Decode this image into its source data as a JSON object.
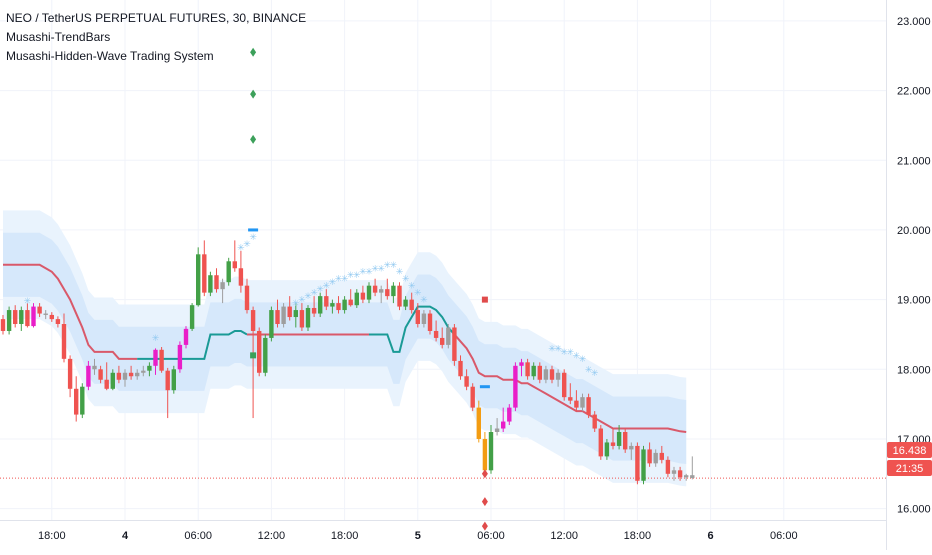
{
  "legend": {
    "title": "NEO / TetherUS PERPETUAL FUTURES, 30, BINANCE",
    "indicator_1": "Musashi-TrendBars",
    "indicator_2": "Musashi-Hidden-Wave Trading System"
  },
  "price_tags": {
    "last_price": "16.438",
    "countdown": "21:35"
  },
  "colors": {
    "bull_green": "#43a047",
    "bear_red": "#ef5350",
    "magenta": "#e91ec8",
    "orange": "#f39c12",
    "gray": "#9e9e9e",
    "baseline_red": "#d9596a",
    "baseline_teal": "#1a9a96",
    "band_outer": "#e9f3fd",
    "band_inner": "#d6e8fb",
    "star_blue": "#90c8f0",
    "diamond_green": "#3ca05a",
    "diamond_red": "#e04b4b",
    "marker_blue": "#2196f3",
    "tag_red": "#ef5350"
  },
  "chart_data": {
    "type": "candlestick",
    "symbol": "NEO / TetherUS PERPETUAL FUTURES",
    "interval": "30",
    "exchange": "BINANCE",
    "ylim": [
      15.55,
      23.3
    ],
    "y_ticks": [
      "23.000",
      "22.000",
      "21.000",
      "20.000",
      "19.000",
      "18.000",
      "17.000",
      "16.000"
    ],
    "y_tick_values": [
      23,
      22,
      21,
      20,
      19,
      18,
      17,
      16
    ],
    "x_ticks": [
      {
        "label": "18:00",
        "index": 8,
        "bold": false
      },
      {
        "label": "4",
        "index": 20,
        "bold": true
      },
      {
        "label": "06:00",
        "index": 32,
        "bold": false
      },
      {
        "label": "12:00",
        "index": 44,
        "bold": false
      },
      {
        "label": "18:00",
        "index": 56,
        "bold": false
      },
      {
        "label": "5",
        "index": 68,
        "bold": true
      },
      {
        "label": "06:00",
        "index": 80,
        "bold": false
      },
      {
        "label": "12:00",
        "index": 92,
        "bold": false
      },
      {
        "label": "18:00",
        "index": 104,
        "bold": false
      },
      {
        "label": "6",
        "index": 116,
        "bold": true
      },
      {
        "label": "06:00",
        "index": 128,
        "bold": false
      }
    ],
    "last_price": 16.438,
    "candles": [
      [
        18.72,
        18.78,
        18.5,
        18.55,
        "bear_red"
      ],
      [
        18.55,
        18.9,
        18.5,
        18.85,
        "bull_green"
      ],
      [
        18.85,
        18.92,
        18.6,
        18.65,
        "bear_red"
      ],
      [
        18.65,
        18.9,
        18.55,
        18.85,
        "bull_green"
      ],
      [
        18.85,
        18.95,
        18.6,
        18.62,
        "bear_red"
      ],
      [
        18.62,
        18.95,
        18.6,
        18.9,
        "magenta"
      ],
      [
        18.9,
        18.95,
        18.75,
        18.8,
        "bear_red"
      ],
      [
        18.8,
        18.85,
        18.72,
        18.78,
        "gray"
      ],
      [
        18.78,
        18.82,
        18.68,
        18.72,
        "bear_red"
      ],
      [
        18.72,
        18.76,
        18.6,
        18.65,
        "bear_red"
      ],
      [
        18.65,
        18.8,
        18.1,
        18.15,
        "bear_red"
      ],
      [
        18.15,
        18.2,
        17.6,
        17.72,
        "bear_red"
      ],
      [
        17.72,
        17.9,
        17.25,
        17.35,
        "bear_red"
      ],
      [
        17.35,
        17.8,
        17.3,
        17.75,
        "bull_green"
      ],
      [
        17.75,
        18.12,
        17.7,
        18.05,
        "magenta"
      ],
      [
        18.05,
        18.15,
        17.92,
        18.0,
        "gray"
      ],
      [
        18.0,
        18.05,
        17.8,
        17.85,
        "bear_red"
      ],
      [
        17.85,
        18.1,
        17.7,
        17.72,
        "bear_red"
      ],
      [
        17.72,
        18.0,
        17.7,
        17.95,
        "bull_green"
      ],
      [
        17.95,
        18.05,
        17.8,
        17.85,
        "bear_red"
      ],
      [
        17.85,
        18.0,
        17.75,
        17.95,
        "gray"
      ],
      [
        17.95,
        18.05,
        17.85,
        17.9,
        "bear_red"
      ],
      [
        17.9,
        18.0,
        17.85,
        17.95,
        "gray"
      ],
      [
        17.95,
        18.05,
        17.9,
        17.98,
        "gray"
      ],
      [
        17.98,
        18.1,
        17.9,
        18.05,
        "bull_green"
      ],
      [
        18.05,
        18.3,
        17.92,
        18.28,
        "magenta"
      ],
      [
        18.28,
        18.32,
        17.95,
        17.98,
        "bear_red"
      ],
      [
        17.98,
        18.02,
        17.3,
        17.7,
        "bear_red"
      ],
      [
        17.7,
        18.05,
        17.65,
        18.0,
        "bull_green"
      ],
      [
        18.0,
        18.4,
        17.95,
        18.35,
        "magenta"
      ],
      [
        18.35,
        18.62,
        18.3,
        18.58,
        "magenta"
      ],
      [
        18.58,
        18.95,
        18.55,
        18.92,
        "bull_green"
      ],
      [
        18.92,
        19.75,
        18.9,
        19.65,
        "bull_green"
      ],
      [
        19.65,
        19.85,
        19.05,
        19.1,
        "bear_red"
      ],
      [
        19.1,
        19.4,
        19.05,
        19.35,
        "bull_green"
      ],
      [
        19.35,
        19.45,
        19.1,
        19.15,
        "bear_red"
      ],
      [
        19.15,
        19.3,
        18.95,
        19.25,
        "gray"
      ],
      [
        19.25,
        19.6,
        19.2,
        19.55,
        "bull_green"
      ],
      [
        19.55,
        19.85,
        19.4,
        19.45,
        "bear_red"
      ],
      [
        19.45,
        19.7,
        19.1,
        19.2,
        "bear_red"
      ],
      [
        19.2,
        19.3,
        18.8,
        18.85,
        "bear_red"
      ],
      [
        18.85,
        18.9,
        17.3,
        18.55,
        "bear_red"
      ],
      [
        18.55,
        18.6,
        17.9,
        17.95,
        "bear_red"
      ],
      [
        17.95,
        18.5,
        17.9,
        18.45,
        "bull_green"
      ],
      [
        18.45,
        18.9,
        18.4,
        18.85,
        "bull_green"
      ],
      [
        18.85,
        19.0,
        18.6,
        18.65,
        "bear_red"
      ],
      [
        18.65,
        18.95,
        18.6,
        18.9,
        "gray"
      ],
      [
        18.9,
        19.05,
        18.7,
        18.75,
        "bear_red"
      ],
      [
        18.75,
        18.95,
        18.6,
        18.85,
        "bull_green"
      ],
      [
        18.85,
        18.95,
        18.55,
        18.6,
        "bear_red"
      ],
      [
        18.6,
        18.92,
        18.55,
        18.88,
        "bull_green"
      ],
      [
        18.88,
        19.05,
        18.75,
        18.8,
        "bear_red"
      ],
      [
        18.8,
        19.1,
        18.75,
        19.05,
        "bull_green"
      ],
      [
        19.05,
        19.15,
        18.85,
        18.9,
        "bear_red"
      ],
      [
        18.9,
        19.0,
        18.8,
        18.95,
        "bull_green"
      ],
      [
        18.95,
        19.05,
        18.8,
        18.85,
        "bear_red"
      ],
      [
        18.85,
        19.05,
        18.8,
        19.0,
        "bull_green"
      ],
      [
        19.0,
        19.15,
        18.9,
        18.92,
        "bear_red"
      ],
      [
        18.92,
        19.15,
        18.88,
        19.1,
        "bull_green"
      ],
      [
        19.1,
        19.2,
        18.95,
        19.0,
        "bear_red"
      ],
      [
        19.0,
        19.25,
        18.95,
        19.2,
        "bull_green"
      ],
      [
        19.2,
        19.3,
        19.05,
        19.1,
        "bear_red"
      ],
      [
        19.1,
        19.2,
        18.95,
        19.15,
        "gray"
      ],
      [
        19.15,
        19.3,
        19.0,
        19.05,
        "bear_red"
      ],
      [
        19.05,
        19.25,
        18.95,
        19.2,
        "bull_green"
      ],
      [
        19.2,
        19.25,
        18.85,
        18.9,
        "bear_red"
      ],
      [
        18.9,
        19.05,
        18.85,
        19.0,
        "bull_green"
      ],
      [
        19.0,
        19.1,
        18.8,
        18.85,
        "bear_red"
      ],
      [
        18.85,
        18.95,
        18.6,
        18.65,
        "bear_red"
      ],
      [
        18.65,
        18.85,
        18.6,
        18.8,
        "gray"
      ],
      [
        18.8,
        18.85,
        18.5,
        18.55,
        "bear_red"
      ],
      [
        18.55,
        18.7,
        18.4,
        18.45,
        "bear_red"
      ],
      [
        18.45,
        18.6,
        18.3,
        18.35,
        "bear_red"
      ],
      [
        18.35,
        18.65,
        18.3,
        18.6,
        "gray"
      ],
      [
        18.6,
        18.65,
        18.05,
        18.12,
        "bear_red"
      ],
      [
        18.12,
        18.2,
        17.85,
        17.9,
        "bear_red"
      ],
      [
        17.9,
        18.0,
        17.7,
        17.75,
        "bear_red"
      ],
      [
        17.75,
        17.8,
        17.4,
        17.45,
        "bear_red"
      ],
      [
        17.45,
        17.55,
        16.95,
        17.0,
        "orange"
      ],
      [
        17.0,
        17.1,
        16.5,
        16.55,
        "orange"
      ],
      [
        16.55,
        17.2,
        16.5,
        17.1,
        "bull_green"
      ],
      [
        17.1,
        17.3,
        17.05,
        17.15,
        "gray"
      ],
      [
        17.15,
        17.45,
        17.1,
        17.25,
        "magenta"
      ],
      [
        17.25,
        17.5,
        17.2,
        17.45,
        "magenta"
      ],
      [
        17.45,
        18.1,
        17.4,
        18.05,
        "magenta"
      ],
      [
        18.05,
        18.15,
        17.9,
        18.1,
        "magenta"
      ],
      [
        18.1,
        18.15,
        17.85,
        17.9,
        "bear_red"
      ],
      [
        17.9,
        18.1,
        17.85,
        18.05,
        "bull_green"
      ],
      [
        18.05,
        18.1,
        17.8,
        17.85,
        "bear_red"
      ],
      [
        17.85,
        18.05,
        17.8,
        18.0,
        "gray"
      ],
      [
        18.0,
        18.05,
        17.8,
        17.85,
        "bear_red"
      ],
      [
        17.85,
        18.0,
        17.75,
        17.95,
        "gray"
      ],
      [
        17.95,
        18.0,
        17.55,
        17.6,
        "bear_red"
      ],
      [
        17.6,
        17.8,
        17.5,
        17.55,
        "bear_red"
      ],
      [
        17.55,
        17.7,
        17.4,
        17.45,
        "bear_red"
      ],
      [
        17.45,
        17.65,
        17.4,
        17.6,
        "gray"
      ],
      [
        17.6,
        17.65,
        17.3,
        17.35,
        "bear_red"
      ],
      [
        17.35,
        17.4,
        17.1,
        17.15,
        "bear_red"
      ],
      [
        17.15,
        17.2,
        16.7,
        16.75,
        "bear_red"
      ],
      [
        16.75,
        17.0,
        16.7,
        16.95,
        "bull_green"
      ],
      [
        16.95,
        17.15,
        16.85,
        16.9,
        "bear_red"
      ],
      [
        16.9,
        17.2,
        16.85,
        17.1,
        "bull_green"
      ],
      [
        17.1,
        17.15,
        16.8,
        16.85,
        "bear_red"
      ],
      [
        16.85,
        16.95,
        16.7,
        16.9,
        "gray"
      ],
      [
        16.9,
        16.95,
        16.35,
        16.4,
        "bear_red"
      ],
      [
        16.4,
        16.9,
        16.35,
        16.85,
        "bull_green"
      ],
      [
        16.85,
        16.95,
        16.6,
        16.65,
        "bear_red"
      ],
      [
        16.65,
        16.85,
        16.6,
        16.8,
        "gray"
      ],
      [
        16.8,
        16.9,
        16.65,
        16.7,
        "bear_red"
      ],
      [
        16.7,
        16.75,
        16.45,
        16.5,
        "bear_red"
      ],
      [
        16.5,
        16.6,
        16.4,
        16.55,
        "gray"
      ],
      [
        16.55,
        16.6,
        16.4,
        16.45,
        "bear_red"
      ],
      [
        16.45,
        16.5,
        16.4,
        16.48,
        "gray"
      ],
      [
        16.48,
        16.75,
        16.42,
        16.44,
        "gray"
      ]
    ],
    "baseline": [
      19.5,
      19.5,
      19.5,
      19.5,
      19.5,
      19.5,
      19.5,
      19.45,
      19.4,
      19.3,
      19.15,
      19.0,
      18.8,
      18.6,
      18.35,
      18.25,
      18.25,
      18.25,
      18.25,
      18.15,
      18.15,
      18.15,
      18.15,
      18.15,
      18.15,
      18.15,
      18.15,
      18.15,
      18.15,
      18.15,
      18.15,
      18.15,
      18.15,
      18.15,
      18.5,
      18.5,
      18.5,
      18.5,
      18.55,
      18.55,
      18.5,
      18.5,
      18.5,
      18.5,
      18.5,
      18.5,
      18.5,
      18.5,
      18.5,
      18.5,
      18.5,
      18.5,
      18.5,
      18.5,
      18.5,
      18.5,
      18.5,
      18.5,
      18.5,
      18.5,
      18.5,
      18.5,
      18.5,
      18.5,
      18.25,
      18.25,
      18.6,
      18.75,
      18.9,
      18.9,
      18.9,
      18.85,
      18.75,
      18.6,
      18.5,
      18.4,
      18.3,
      18.15,
      17.95,
      17.9,
      17.9,
      17.9,
      17.85,
      17.85,
      17.85,
      17.8,
      17.8,
      17.75,
      17.7,
      17.65,
      17.6,
      17.55,
      17.5,
      17.45,
      17.4,
      17.4,
      17.35,
      17.3,
      17.25,
      17.2,
      17.15,
      17.15,
      17.15,
      17.15,
      17.15,
      17.15,
      17.15,
      17.15,
      17.15,
      17.15,
      17.13,
      17.11,
      17.1
    ],
    "band_outer_half": 0.78,
    "band_inner_half": 0.46,
    "stars": [
      [
        4,
        18.98
      ],
      [
        25,
        18.45
      ],
      [
        39,
        19.75
      ],
      [
        40,
        19.8
      ],
      [
        41,
        19.9
      ],
      [
        48,
        18.95
      ],
      [
        49,
        19.0
      ],
      [
        50,
        19.05
      ],
      [
        51,
        19.1
      ],
      [
        52,
        19.15
      ],
      [
        53,
        19.2
      ],
      [
        54,
        19.25
      ],
      [
        55,
        19.3
      ],
      [
        56,
        19.3
      ],
      [
        57,
        19.35
      ],
      [
        58,
        19.35
      ],
      [
        59,
        19.4
      ],
      [
        60,
        19.4
      ],
      [
        61,
        19.45
      ],
      [
        62,
        19.45
      ],
      [
        63,
        19.5
      ],
      [
        64,
        19.5
      ],
      [
        65,
        19.4
      ],
      [
        66,
        19.3
      ],
      [
        67,
        19.2
      ],
      [
        68,
        19.1
      ],
      [
        69,
        19.0
      ],
      [
        90,
        18.3
      ],
      [
        91,
        18.3
      ],
      [
        92,
        18.25
      ],
      [
        93,
        18.25
      ],
      [
        94,
        18.2
      ],
      [
        95,
        18.15
      ],
      [
        96,
        18.0
      ],
      [
        97,
        17.95
      ]
    ],
    "diamonds_green": [
      [
        41,
        22.55
      ],
      [
        41,
        21.95
      ],
      [
        41,
        21.3
      ]
    ],
    "diamonds_red": [
      [
        79,
        16.5
      ],
      [
        79,
        16.1
      ],
      [
        79,
        15.75
      ]
    ],
    "square_green": [
      [
        41,
        18.2
      ]
    ],
    "square_red": [
      [
        79,
        19.0
      ]
    ],
    "dash_blue": [
      [
        41,
        20.0
      ],
      [
        79,
        17.75
      ]
    ]
  }
}
